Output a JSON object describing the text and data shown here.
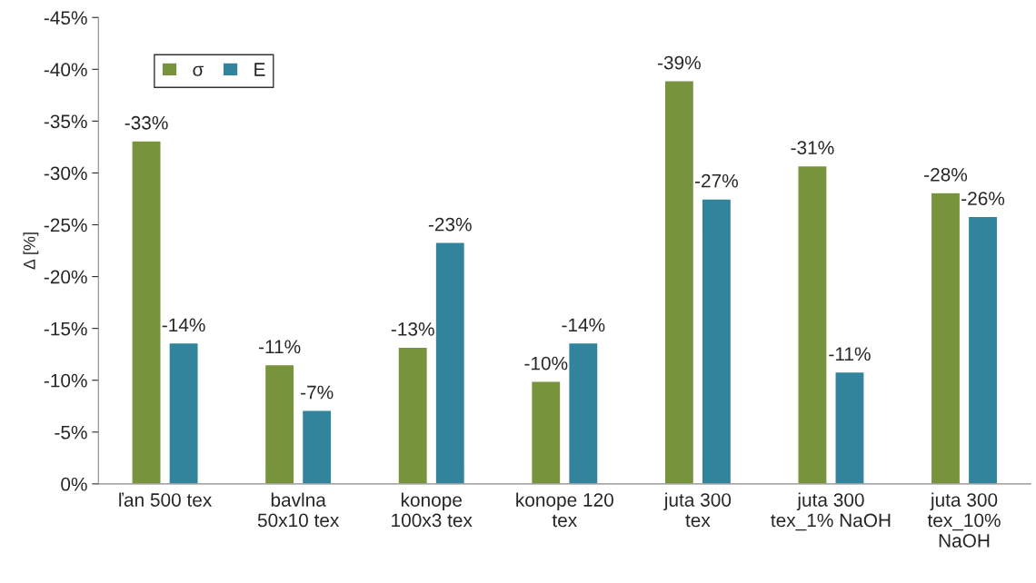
{
  "chart_data": {
    "type": "bar",
    "ylabel": "Δ [%]",
    "categories": [
      "ľan 500 tex",
      "bavlna 50x10 tex",
      "konope 100x3 tex",
      "konope 120 tex",
      "juta 300 tex",
      "juta 300 tex_1% NaOH",
      "juta 300 tex_10% NaOH"
    ],
    "series": [
      {
        "name": "σ",
        "color": "#77933c",
        "values": [
          -33.1,
          -11.5,
          -13.2,
          -9.9,
          -38.9,
          -30.7,
          -28.1
        ],
        "value_labels": [
          "-33%",
          "-11%",
          "-13%",
          "-10%",
          "-39%",
          "-31%",
          "-28%"
        ]
      },
      {
        "name": "E",
        "color": "#31849b",
        "values": [
          -13.6,
          -7.1,
          -23.3,
          -13.6,
          -27.5,
          -10.8,
          -25.8
        ],
        "value_labels": [
          "-14%",
          "-7%",
          "-23%",
          "-14%",
          "-27%",
          "-11%",
          "-26%"
        ]
      }
    ],
    "ylim": [
      0,
      -45
    ],
    "yticks": [
      {
        "value": 0,
        "label": "0%"
      },
      {
        "value": -5,
        "label": "-5%"
      },
      {
        "value": -10,
        "label": "-10%"
      },
      {
        "value": -15,
        "label": "-15%"
      },
      {
        "value": -20,
        "label": "-20%"
      },
      {
        "value": -25,
        "label": "-25%"
      },
      {
        "value": -30,
        "label": "-30%"
      },
      {
        "value": -35,
        "label": "-35%"
      },
      {
        "value": -40,
        "label": "-40%"
      },
      {
        "value": -45,
        "label": "-45%"
      }
    ],
    "legend": "top left",
    "grid": false
  }
}
